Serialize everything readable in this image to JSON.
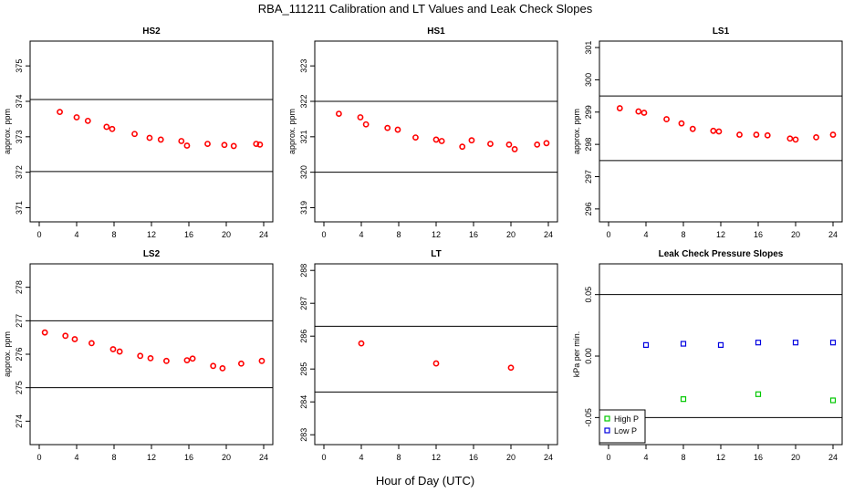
{
  "figure": {
    "title": "RBA_111211  Calibration and LT Values and Leak Check Slopes",
    "xlabel": "Hour of Day (UTC)"
  },
  "chart_data": [
    {
      "type": "scatter",
      "title": "HS2",
      "xlabel": "Hour of Day (UTC)",
      "ylabel": "approx. ppm",
      "xlim": [
        0,
        24
      ],
      "ylim": [
        370.6,
        375.7
      ],
      "xticks": [
        0,
        4,
        8,
        12,
        16,
        20,
        24
      ],
      "yticks": [
        371,
        372,
        373,
        374,
        375
      ],
      "hlines": [
        374.05,
        372.02
      ],
      "series": [
        {
          "color": "#ff0000",
          "marker": "circle",
          "x": [
            2.2,
            4.0,
            5.2,
            7.2,
            7.8,
            10.2,
            11.8,
            13.0,
            15.2,
            15.8,
            18.0,
            19.8,
            20.8,
            23.2,
            23.6
          ],
          "y": [
            373.7,
            373.55,
            373.45,
            373.28,
            373.22,
            373.08,
            372.97,
            372.92,
            372.88,
            372.75,
            372.8,
            372.77,
            372.74,
            372.8,
            372.78
          ]
        }
      ]
    },
    {
      "type": "scatter",
      "title": "HS1",
      "xlabel": "Hour of Day (UTC)",
      "ylabel": "approx. ppm",
      "xlim": [
        0,
        24
      ],
      "ylim": [
        318.6,
        323.7
      ],
      "xticks": [
        0,
        4,
        8,
        12,
        16,
        20,
        24
      ],
      "yticks": [
        319,
        320,
        321,
        322,
        323
      ],
      "hlines": [
        322.0,
        320.0
      ],
      "series": [
        {
          "color": "#ff0000",
          "marker": "circle",
          "x": [
            1.6,
            3.9,
            4.5,
            6.8,
            7.9,
            9.8,
            12.0,
            12.6,
            14.8,
            15.8,
            17.8,
            19.8,
            20.4,
            22.8,
            23.8
          ],
          "y": [
            321.65,
            321.55,
            321.35,
            321.25,
            321.2,
            320.98,
            320.92,
            320.88,
            320.72,
            320.9,
            320.8,
            320.78,
            320.65,
            320.78,
            320.82
          ]
        }
      ]
    },
    {
      "type": "scatter",
      "title": "LS1",
      "xlabel": "Hour of Day (UTC)",
      "ylabel": "approx. ppm",
      "xlim": [
        0,
        24
      ],
      "ylim": [
        295.6,
        301.2
      ],
      "xticks": [
        0,
        4,
        8,
        12,
        16,
        20,
        24
      ],
      "yticks": [
        296,
        297,
        298,
        299,
        300,
        301
      ],
      "hlines": [
        299.5,
        297.5
      ],
      "series": [
        {
          "color": "#ff0000",
          "marker": "circle",
          "x": [
            1.2,
            3.2,
            3.8,
            6.2,
            7.8,
            9.0,
            11.2,
            11.8,
            14.0,
            15.8,
            17.0,
            19.4,
            20.0,
            22.2,
            24.0
          ],
          "y": [
            299.12,
            299.02,
            298.98,
            298.78,
            298.65,
            298.48,
            298.42,
            298.4,
            298.3,
            298.3,
            298.28,
            298.18,
            298.15,
            298.22,
            298.3
          ]
        }
      ]
    },
    {
      "type": "scatter",
      "title": "LS2",
      "xlabel": "Hour of Day (UTC)",
      "ylabel": "approx. ppm",
      "xlim": [
        0,
        24
      ],
      "ylim": [
        273.3,
        278.7
      ],
      "xticks": [
        0,
        4,
        8,
        12,
        16,
        20,
        24
      ],
      "yticks": [
        274,
        275,
        276,
        277,
        278
      ],
      "hlines": [
        277.0,
        275.0
      ],
      "series": [
        {
          "color": "#ff0000",
          "marker": "circle",
          "x": [
            0.6,
            2.8,
            3.8,
            5.6,
            7.9,
            8.6,
            10.8,
            11.9,
            13.6,
            15.8,
            16.4,
            18.6,
            19.6,
            21.6,
            23.8
          ],
          "y": [
            276.65,
            276.55,
            276.45,
            276.33,
            276.15,
            276.08,
            275.95,
            275.88,
            275.8,
            275.82,
            275.87,
            275.65,
            275.58,
            275.72,
            275.8
          ]
        }
      ]
    },
    {
      "type": "scatter",
      "title": "LT",
      "xlabel": "Hour of Day (UTC)",
      "ylabel": "",
      "xlim": [
        0,
        24
      ],
      "ylim": [
        282.7,
        288.2
      ],
      "xticks": [
        0,
        4,
        8,
        12,
        16,
        20,
        24
      ],
      "yticks": [
        283,
        284,
        285,
        286,
        287,
        288
      ],
      "hlines": [
        286.3,
        284.3
      ],
      "series": [
        {
          "color": "#ff0000",
          "marker": "circle",
          "x": [
            4.0,
            12.0,
            20.0
          ],
          "y": [
            285.78,
            285.17,
            285.04
          ]
        }
      ]
    },
    {
      "type": "scatter",
      "title": "Leak Check Pressure Slopes",
      "xlabel": "Hour of Day (UTC)",
      "ylabel": "kPa per min.",
      "xlim": [
        0,
        24
      ],
      "ylim": [
        -0.072,
        0.075
      ],
      "xticks": [
        0,
        4,
        8,
        12,
        16,
        20,
        24
      ],
      "yticks": [
        -0.05,
        0.0,
        0.05
      ],
      "ytick_labels": [
        "-0.05",
        "0.00",
        "0.05"
      ],
      "hlines": [
        0.05,
        -0.05
      ],
      "legend": {
        "position": "bottom-left"
      },
      "series": [
        {
          "name": "High P",
          "color": "#00c800",
          "marker": "square",
          "x": [
            8.0,
            16.0,
            24.0
          ],
          "y": [
            -0.035,
            -0.031,
            -0.036
          ]
        },
        {
          "name": "Low P",
          "color": "#0000e0",
          "marker": "square",
          "x": [
            4.0,
            8.0,
            12.0,
            16.0,
            20.0,
            24.0
          ],
          "y": [
            0.009,
            0.01,
            0.009,
            0.011,
            0.011,
            0.011
          ]
        }
      ]
    }
  ]
}
